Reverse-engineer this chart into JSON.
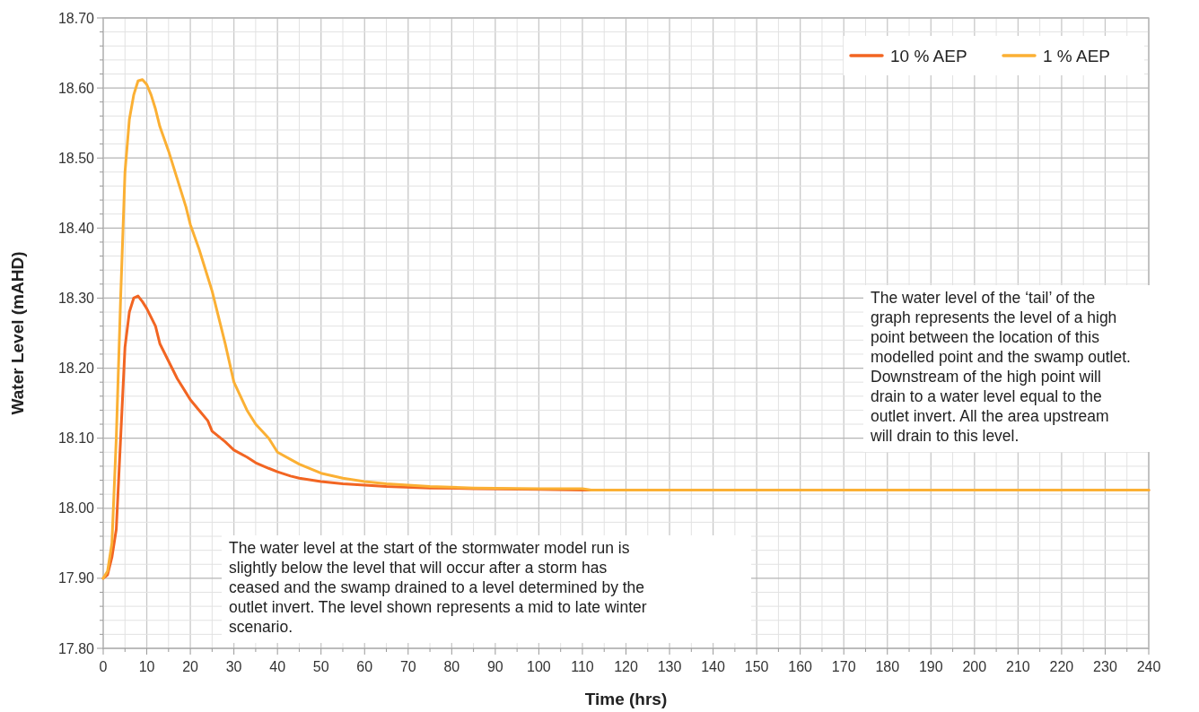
{
  "chart_data": {
    "type": "line",
    "xlabel": "Time (hrs)",
    "ylabel": "Water Level (mAHD)",
    "xlim": [
      0,
      240
    ],
    "ylim": [
      17.8,
      18.7
    ],
    "xticks": [
      0,
      {
        "value": 5,
        "label": null
      },
      10,
      {
        "value": 15,
        "label": null
      },
      20,
      {
        "value": 25,
        "label": null
      },
      30,
      {
        "value": 35,
        "label": null
      },
      40,
      {
        "value": 45,
        "label": null
      },
      50,
      {
        "value": 55,
        "label": null
      },
      60,
      {
        "value": 65,
        "label": null
      },
      70,
      {
        "value": 75,
        "label": null
      },
      80,
      {
        "value": 85,
        "label": null
      },
      90,
      {
        "value": 95,
        "label": null
      },
      100,
      {
        "value": 105,
        "label": null
      },
      110,
      {
        "value": 115,
        "label": null
      },
      120,
      {
        "value": 125,
        "label": null
      },
      130,
      {
        "value": 135,
        "label": null
      },
      140,
      {
        "value": 145,
        "label": null
      },
      150,
      {
        "value": 155,
        "label": null
      },
      160,
      {
        "value": 165,
        "label": null
      },
      170,
      {
        "value": 175,
        "label": null
      },
      180,
      {
        "value": 185,
        "label": null
      },
      190,
      {
        "value": 195,
        "label": null
      },
      200,
      {
        "value": 205,
        "label": null
      },
      210,
      {
        "value": 215,
        "label": null
      },
      220,
      {
        "value": 225,
        "label": null
      },
      230,
      {
        "value": 235,
        "label": null
      },
      240
    ],
    "yticks": [
      {
        "value": 17.8,
        "label": "17.80"
      },
      {
        "value": 17.82,
        "label": null
      },
      {
        "value": 17.84,
        "label": null
      },
      {
        "value": 17.86,
        "label": null
      },
      {
        "value": 17.88,
        "label": null
      },
      {
        "value": 17.9,
        "label": "17.90"
      },
      {
        "value": 17.92,
        "label": null
      },
      {
        "value": 17.94,
        "label": null
      },
      {
        "value": 17.96,
        "label": null
      },
      {
        "value": 17.98,
        "label": null
      },
      {
        "value": 18.0,
        "label": "18.00"
      },
      {
        "value": 18.02,
        "label": null
      },
      {
        "value": 18.04,
        "label": null
      },
      {
        "value": 18.06,
        "label": null
      },
      {
        "value": 18.08,
        "label": null
      },
      {
        "value": 18.1,
        "label": "18.10"
      },
      {
        "value": 18.12,
        "label": null
      },
      {
        "value": 18.14,
        "label": null
      },
      {
        "value": 18.16,
        "label": null
      },
      {
        "value": 18.18,
        "label": null
      },
      {
        "value": 18.2,
        "label": "18.20"
      },
      {
        "value": 18.22,
        "label": null
      },
      {
        "value": 18.24,
        "label": null
      },
      {
        "value": 18.26,
        "label": null
      },
      {
        "value": 18.28,
        "label": null
      },
      {
        "value": 18.3,
        "label": "18.30"
      },
      {
        "value": 18.32,
        "label": null
      },
      {
        "value": 18.34,
        "label": null
      },
      {
        "value": 18.36,
        "label": null
      },
      {
        "value": 18.38,
        "label": null
      },
      {
        "value": 18.4,
        "label": "18.40"
      },
      {
        "value": 18.42,
        "label": null
      },
      {
        "value": 18.44,
        "label": null
      },
      {
        "value": 18.46,
        "label": null
      },
      {
        "value": 18.48,
        "label": null
      },
      {
        "value": 18.5,
        "label": "18.50"
      },
      {
        "value": 18.52,
        "label": null
      },
      {
        "value": 18.54,
        "label": null
      },
      {
        "value": 18.56,
        "label": null
      },
      {
        "value": 18.58,
        "label": null
      },
      {
        "value": 18.6,
        "label": "18.60"
      },
      {
        "value": 18.62,
        "label": null
      },
      {
        "value": 18.64,
        "label": null
      },
      {
        "value": 18.66,
        "label": null
      },
      {
        "value": 18.68,
        "label": null
      },
      {
        "value": 18.7,
        "label": "18.70"
      }
    ],
    "grid": true,
    "legend": "top right",
    "marker": "none",
    "line_style": "solid",
    "series": [
      {
        "name": "10 % AEP",
        "color": "#f26522",
        "x": [
          0,
          1,
          2,
          3,
          4,
          5,
          6,
          7,
          8,
          9,
          10,
          12,
          13,
          15,
          17,
          19,
          20,
          22,
          24,
          25,
          28,
          30,
          33,
          35,
          38,
          40,
          43,
          45,
          50,
          55,
          60,
          65,
          75,
          85,
          100,
          110,
          240
        ],
        "values": [
          17.9,
          17.905,
          17.93,
          17.97,
          18.1,
          18.23,
          18.28,
          18.3,
          18.303,
          18.295,
          18.285,
          18.26,
          18.235,
          18.21,
          18.185,
          18.165,
          18.155,
          18.14,
          18.125,
          18.11,
          18.095,
          18.083,
          18.073,
          18.065,
          18.057,
          18.052,
          18.046,
          18.043,
          18.038,
          18.035,
          18.033,
          18.031,
          18.029,
          18.028,
          18.027,
          18.026,
          18.026
        ]
      },
      {
        "name": "1 % AEP",
        "color": "#fbb034",
        "x": [
          0,
          1,
          2,
          3,
          4,
          5,
          6,
          7,
          8,
          9,
          10,
          11,
          12,
          13,
          15,
          17,
          19,
          20,
          22,
          24,
          25,
          26,
          28,
          30,
          33,
          35,
          38,
          40,
          45,
          50,
          55,
          60,
          65,
          70,
          75,
          85,
          100,
          110,
          112,
          240
        ],
        "values": [
          17.9,
          17.91,
          17.95,
          18.1,
          18.3,
          18.48,
          18.555,
          18.59,
          18.61,
          18.612,
          18.605,
          18.59,
          18.57,
          18.545,
          18.51,
          18.47,
          18.43,
          18.405,
          18.37,
          18.33,
          18.31,
          18.285,
          18.235,
          18.18,
          18.14,
          18.12,
          18.1,
          18.08,
          18.063,
          18.05,
          18.043,
          18.038,
          18.035,
          18.033,
          18.031,
          18.029,
          18.028,
          18.028,
          18.026,
          18.026
        ]
      }
    ],
    "annotations": [
      "The water level of the ‘tail’ of the graph represents the level of a high point between the location of this modelled point and the swamp outlet. Downstream of the high point will drain to a water level equal to the outlet invert. All the area upstream will drain to this level.",
      "The water level at the start of the stormwater model run is slightly below the level that will occur after a storm has ceased and the swamp drained to a level determined by the outlet invert. The level shown represents a mid to late winter scenario."
    ]
  }
}
